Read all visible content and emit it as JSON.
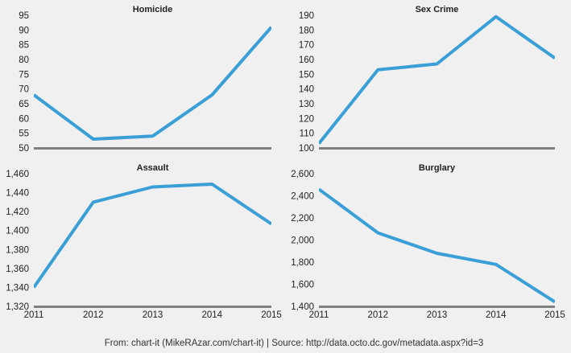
{
  "footer": "From: chart-it (MikeRAzar.com/chart-it) | Source: http://data.octo.dc.gov/metadata.aspx?id=3",
  "colors": {
    "line": "#3a9fd6",
    "baseline": "#808080",
    "background": "#f0f0f0"
  },
  "chart_data": [
    {
      "type": "line",
      "title": "Homicide",
      "x": [
        2011,
        2012,
        2013,
        2014,
        2015
      ],
      "values": [
        68,
        53,
        54,
        68,
        91
      ],
      "ylim": [
        50,
        95
      ],
      "yticks": [
        "50",
        "55",
        "60",
        "65",
        "70",
        "75",
        "80",
        "85",
        "90",
        "95"
      ],
      "xticks": [],
      "grid": false
    },
    {
      "type": "line",
      "title": "Sex Crime",
      "x": [
        2011,
        2012,
        2013,
        2014,
        2015
      ],
      "values": [
        103,
        153,
        157,
        189,
        161
      ],
      "ylim": [
        100,
        190
      ],
      "yticks": [
        "100",
        "110",
        "120",
        "130",
        "140",
        "150",
        "160",
        "170",
        "180",
        "190"
      ],
      "xticks": [],
      "grid": false
    },
    {
      "type": "line",
      "title": "Assault",
      "x": [
        2011,
        2012,
        2013,
        2014,
        2015
      ],
      "values": [
        1340,
        1430,
        1446,
        1449,
        1407
      ],
      "ylim": [
        1320,
        1460
      ],
      "yticks": [
        "1,320",
        "1,340",
        "1,360",
        "1,380",
        "1,400",
        "1,420",
        "1,440",
        "1,460"
      ],
      "xticks": [
        "2011",
        "2012",
        "2013",
        "2014",
        "2015"
      ],
      "grid": false
    },
    {
      "type": "line",
      "title": "Burglary",
      "x": [
        2011,
        2012,
        2013,
        2014,
        2015
      ],
      "values": [
        2460,
        2065,
        1880,
        1780,
        1440
      ],
      "ylim": [
        1400,
        2600
      ],
      "yticks": [
        "1,400",
        "1,600",
        "1,800",
        "2,000",
        "2,200",
        "2,400",
        "2,600"
      ],
      "xticks": [
        "2011",
        "2012",
        "2013",
        "2014",
        "2015"
      ],
      "grid": false
    }
  ]
}
